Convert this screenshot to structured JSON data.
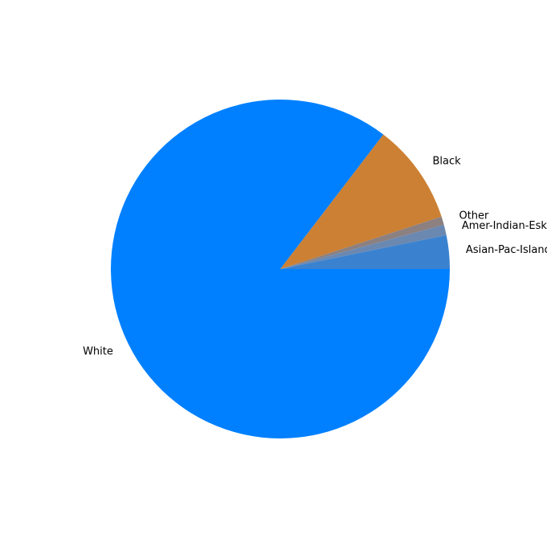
{
  "chart_data": {
    "type": "pie",
    "title": "",
    "categories": [
      "White",
      "Black",
      "Other",
      "Amer-Indian-Eskimo",
      "Asian-Pac-Islander"
    ],
    "values": [
      85.4,
      9.6,
      0.8,
      1.0,
      3.2
    ],
    "colors": [
      "#0080ff",
      "#cc8033",
      "#8c8080",
      "#6b88b0",
      "#3a82d0"
    ],
    "start_angle_deg": 0,
    "direction": "clockwise",
    "legend": "none"
  }
}
